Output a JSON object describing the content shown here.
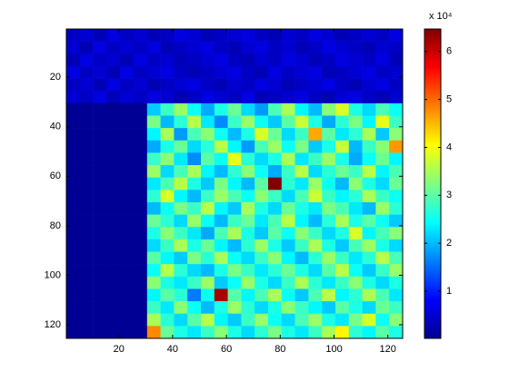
{
  "chart_data": {
    "type": "heatmap",
    "multiplier_label": "x 10⁴",
    "x": [
      3,
      8,
      13,
      18,
      23,
      28,
      33,
      38,
      43,
      48,
      53,
      58,
      63,
      68,
      73,
      78,
      83,
      88,
      93,
      98,
      103,
      108,
      113,
      118,
      123
    ],
    "y": [
      3,
      8,
      13,
      18,
      23,
      28,
      33,
      38,
      43,
      48,
      53,
      58,
      63,
      68,
      73,
      78,
      83,
      88,
      93,
      98,
      103,
      108,
      113,
      118,
      123
    ],
    "xlim": [
      0.5,
      125.5
    ],
    "ylim": [
      0.5,
      125.5
    ],
    "y_reversed": true,
    "xticks": [
      20,
      40,
      60,
      80,
      100,
      120
    ],
    "yticks": [
      20,
      40,
      60,
      80,
      100,
      120
    ],
    "colormap": "jet",
    "clim": [
      0.015,
      6.47
    ],
    "cticks": [
      1,
      2,
      3,
      4,
      5,
      6
    ],
    "z": [
      [
        0.4,
        0.5,
        0.3,
        0.6,
        0.4,
        0.5,
        0.3,
        0.4,
        0.6,
        0.5,
        0.3,
        0.4,
        0.5,
        0.6,
        0.4,
        0.3,
        0.5,
        0.4,
        0.6,
        0.5,
        0.3,
        0.4,
        0.5,
        0.4,
        0.6
      ],
      [
        0.5,
        0.3,
        0.6,
        0.4,
        0.5,
        0.4,
        0.6,
        0.3,
        0.4,
        0.5,
        0.6,
        0.4,
        0.3,
        0.5,
        0.6,
        0.4,
        0.5,
        0.3,
        0.4,
        0.6,
        0.5,
        0.4,
        0.3,
        0.5,
        0.4
      ],
      [
        0.3,
        0.6,
        0.4,
        0.5,
        0.3,
        0.6,
        0.4,
        0.5,
        0.3,
        0.4,
        0.5,
        0.6,
        0.4,
        0.3,
        0.5,
        0.4,
        0.6,
        0.5,
        0.3,
        0.4,
        0.6,
        0.5,
        0.4,
        0.6,
        0.3
      ],
      [
        0.6,
        0.4,
        0.5,
        0.3,
        0.6,
        0.4,
        0.5,
        0.6,
        0.4,
        0.3,
        0.4,
        0.5,
        0.6,
        0.4,
        0.3,
        0.6,
        0.4,
        0.5,
        0.6,
        0.3,
        0.4,
        0.5,
        0.6,
        0.4,
        0.5
      ],
      [
        0.4,
        0.5,
        0.3,
        0.6,
        0.4,
        0.5,
        0.3,
        0.4,
        0.5,
        0.6,
        0.4,
        0.3,
        0.5,
        0.4,
        0.6,
        0.5,
        0.3,
        0.4,
        0.5,
        0.6,
        0.4,
        0.3,
        0.5,
        0.6,
        0.4
      ],
      [
        0.5,
        0.4,
        0.6,
        0.3,
        0.5,
        0.4,
        0.6,
        0.5,
        0.3,
        0.4,
        0.6,
        0.5,
        0.4,
        0.6,
        0.3,
        0.4,
        0.5,
        0.6,
        0.4,
        0.3,
        0.5,
        0.6,
        0.4,
        0.3,
        0.5
      ],
      [
        0.05,
        0.05,
        0.05,
        0.05,
        0.05,
        0.05,
        2.1,
        2.8,
        3.4,
        2.5,
        1.9,
        2.6,
        3.1,
        2.2,
        1.8,
        2.9,
        3.5,
        2.4,
        2.0,
        3.3,
        3.8,
        2.6,
        2.2,
        2.9,
        2.5
      ],
      [
        0.05,
        0.05,
        0.05,
        0.05,
        0.05,
        0.05,
        3.2,
        2.0,
        2.7,
        3.6,
        2.3,
        1.7,
        2.8,
        3.4,
        2.5,
        2.1,
        3.0,
        3.7,
        2.6,
        1.9,
        2.7,
        3.2,
        2.4,
        3.9,
        2.8
      ],
      [
        0.05,
        0.05,
        0.05,
        0.05,
        0.05,
        0.05,
        2.4,
        3.5,
        1.8,
        2.9,
        3.3,
        2.5,
        2.0,
        2.6,
        3.8,
        3.1,
        2.2,
        2.8,
        4.6,
        3.0,
        2.3,
        2.7,
        3.5,
        2.1,
        3.3
      ],
      [
        0.05,
        0.05,
        0.05,
        0.05,
        0.05,
        0.05,
        1.9,
        2.6,
        3.1,
        2.2,
        2.7,
        3.6,
        2.4,
        1.8,
        2.9,
        3.4,
        2.5,
        3.2,
        2.1,
        2.6,
        3.7,
        2.0,
        2.8,
        3.3,
        4.7
      ],
      [
        0.05,
        0.05,
        0.05,
        0.05,
        0.05,
        0.05,
        2.8,
        3.3,
        2.3,
        1.7,
        3.0,
        2.5,
        3.9,
        2.7,
        2.2,
        2.6,
        3.5,
        2.3,
        2.8,
        3.4,
        2.6,
        1.9,
        2.5,
        3.1,
        2.4
      ],
      [
        0.05,
        0.05,
        0.05,
        0.05,
        0.05,
        0.05,
        3.4,
        2.2,
        2.9,
        3.5,
        2.4,
        2.0,
        2.7,
        3.3,
        2.5,
        1.9,
        2.8,
        3.6,
        2.2,
        2.7,
        3.1,
        2.8,
        3.6,
        2.4,
        2.9
      ],
      [
        0.05,
        0.05,
        0.05,
        0.05,
        0.05,
        0.05,
        2.3,
        2.9,
        3.6,
        2.6,
        2.1,
        3.2,
        2.4,
        2.0,
        3.0,
        6.5,
        2.7,
        2.3,
        3.4,
        2.5,
        2.0,
        3.3,
        2.6,
        2.2,
        3.1
      ],
      [
        0.05,
        0.05,
        0.05,
        0.05,
        0.05,
        0.05,
        2.7,
        3.8,
        2.4,
        2.0,
        2.8,
        3.4,
        2.9,
        2.5,
        3.3,
        2.8,
        2.2,
        2.9,
        3.7,
        2.8,
        2.4,
        2.7,
        3.5,
        2.8,
        2.5
      ],
      [
        0.05,
        0.05,
        0.05,
        0.05,
        0.05,
        0.05,
        2.0,
        2.5,
        3.2,
        2.8,
        3.6,
        2.4,
        2.1,
        3.5,
        2.6,
        2.2,
        3.1,
        2.6,
        2.3,
        3.2,
        2.9,
        2.3,
        2.0,
        3.4,
        2.7
      ],
      [
        0.05,
        0.05,
        0.05,
        0.05,
        0.05,
        0.05,
        3.1,
        2.7,
        2.2,
        3.4,
        2.5,
        2.0,
        2.8,
        3.1,
        2.3,
        2.9,
        3.6,
        2.4,
        2.0,
        2.7,
        3.5,
        2.6,
        3.0,
        2.5,
        2.1
      ],
      [
        0.05,
        0.05,
        0.05,
        0.05,
        0.05,
        0.05,
        2.6,
        3.3,
        2.8,
        2.3,
        1.9,
        2.9,
        3.5,
        2.6,
        2.1,
        3.0,
        2.5,
        3.3,
        2.8,
        2.2,
        2.6,
        3.8,
        2.4,
        2.9,
        3.3
      ],
      [
        0.05,
        0.05,
        0.05,
        0.05,
        0.05,
        0.05,
        2.2,
        2.8,
        3.5,
        2.6,
        3.1,
        2.4,
        2.0,
        2.7,
        3.4,
        2.6,
        2.1,
        2.8,
        3.5,
        2.6,
        2.1,
        2.9,
        3.4,
        2.6,
        2.2
      ],
      [
        0.05,
        0.05,
        0.05,
        0.05,
        0.05,
        0.05,
        3.0,
        2.4,
        2.1,
        3.2,
        2.7,
        3.5,
        2.5,
        2.2,
        2.8,
        3.3,
        2.4,
        2.0,
        2.7,
        3.4,
        2.8,
        2.3,
        2.7,
        3.6,
        2.9
      ],
      [
        0.05,
        0.05,
        0.05,
        0.05,
        0.05,
        0.05,
        2.5,
        3.6,
        2.7,
        2.2,
        2.0,
        2.6,
        3.2,
        2.8,
        2.3,
        2.7,
        3.1,
        2.6,
        2.2,
        3.0,
        3.6,
        2.5,
        2.1,
        2.8,
        3.4
      ],
      [
        0.05,
        0.05,
        0.05,
        0.05,
        0.05,
        0.05,
        3.3,
        2.6,
        2.3,
        2.8,
        3.4,
        2.1,
        2.5,
        3.4,
        2.6,
        2.2,
        2.8,
        3.5,
        2.7,
        2.3,
        2.8,
        3.3,
        2.6,
        2.2,
        2.6
      ],
      [
        0.05,
        0.05,
        0.05,
        0.05,
        0.05,
        0.05,
        2.4,
        3.0,
        2.7,
        1.6,
        2.5,
        6.2,
        3.0,
        2.4,
        2.9,
        3.5,
        2.5,
        2.1,
        2.9,
        3.6,
        2.4,
        2.7,
        3.5,
        2.9,
        2.3
      ],
      [
        0.05,
        0.05,
        0.05,
        0.05,
        0.05,
        0.05,
        2.8,
        2.3,
        3.3,
        2.5,
        2.0,
        2.6,
        3.4,
        2.7,
        2.2,
        2.6,
        3.3,
        2.8,
        2.4,
        2.1,
        3.0,
        2.6,
        2.2,
        3.1,
        2.8
      ],
      [
        0.05,
        0.05,
        0.05,
        0.05,
        0.05,
        0.05,
        3.5,
        2.7,
        2.2,
        3.0,
        3.6,
        2.4,
        2.1,
        2.8,
        3.4,
        2.5,
        2.2,
        2.9,
        3.4,
        2.6,
        2.3,
        3.2,
        3.8,
        2.5,
        3.3
      ],
      [
        0.05,
        0.05,
        0.05,
        0.05,
        0.05,
        0.05,
        4.8,
        3.1,
        2.6,
        2.3,
        2.8,
        3.3,
        2.6,
        2.2,
        2.7,
        3.2,
        2.6,
        2.3,
        2.8,
        3.5,
        4.1,
        2.7,
        2.4,
        3.0,
        2.6
      ]
    ]
  }
}
